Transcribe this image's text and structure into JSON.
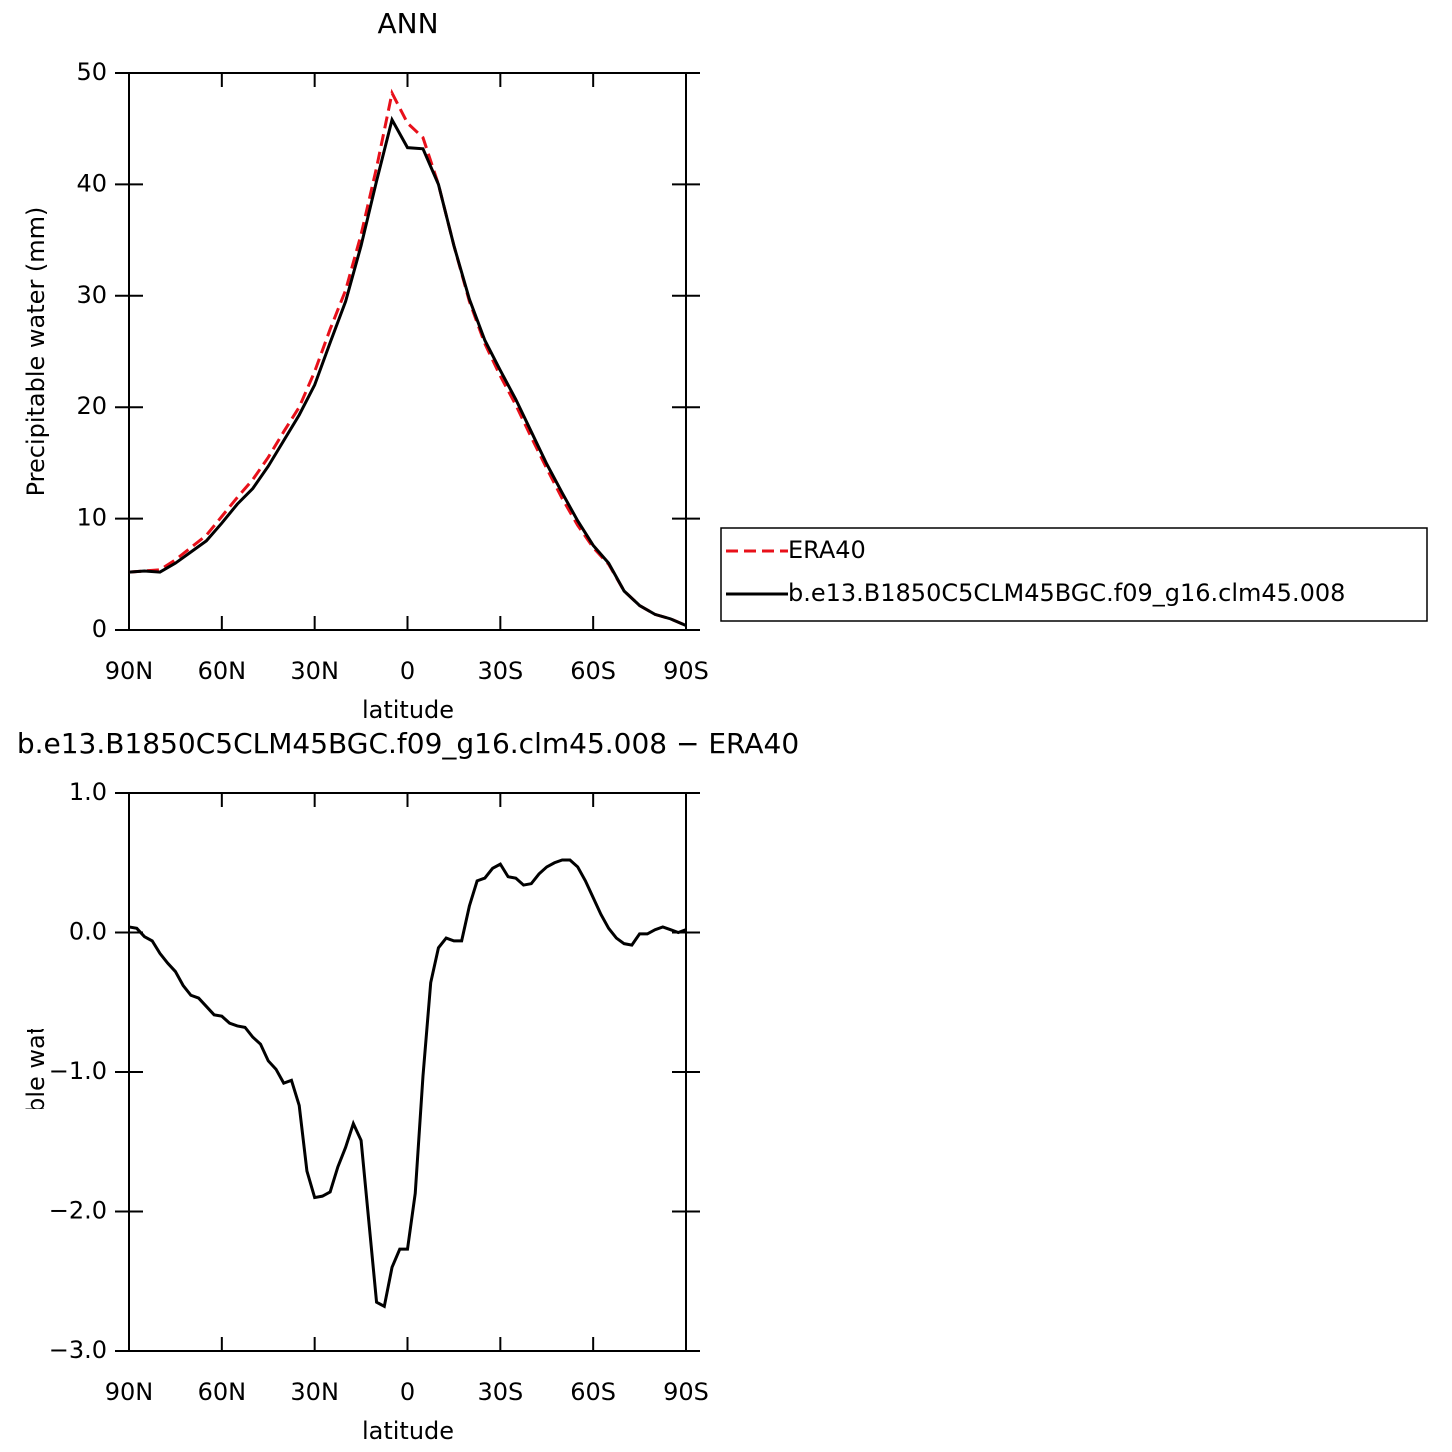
{
  "chart_data": [
    {
      "type": "line",
      "title": "ANN",
      "xlabel": "latitude",
      "ylabel": "Precipitable water (mm)",
      "x": [
        90,
        85,
        80,
        75,
        70,
        65,
        60,
        55,
        50,
        45,
        40,
        35,
        30,
        25,
        20,
        15,
        10,
        5,
        0,
        -5,
        -10,
        -15,
        -20,
        -25,
        -30,
        -35,
        -40,
        -45,
        -50,
        -55,
        -60,
        -65,
        -70,
        -75,
        -80,
        -85,
        -90
      ],
      "series": [
        {
          "name": "ERA40",
          "color": "#e8101a",
          "linestyle": "dashed",
          "values": [
            5.2,
            5.3,
            5.4,
            6.3,
            7.4,
            8.5,
            10.2,
            11.9,
            13.5,
            15.5,
            17.8,
            20.0,
            23.2,
            27.0,
            30.5,
            35.5,
            41.5,
            48.2,
            45.5,
            44.2,
            40.0,
            34.5,
            29.5,
            25.7,
            22.8,
            20.2,
            17.3,
            14.5,
            11.8,
            9.4,
            7.4,
            5.9,
            3.5,
            2.2,
            1.4,
            1.0,
            0.4
          ]
        },
        {
          "name": "b.e13.B1850C5CLM45BGC.f09_g16.clm45.008",
          "color": "#000000",
          "linestyle": "solid",
          "values": [
            5.2,
            5.3,
            5.2,
            6.0,
            7.0,
            8.0,
            9.6,
            11.3,
            12.7,
            14.7,
            17.0,
            19.3,
            22.0,
            25.8,
            29.5,
            34.5,
            40.3,
            45.8,
            43.3,
            43.2,
            40.0,
            34.5,
            29.7,
            26.0,
            23.3,
            20.7,
            17.8,
            14.9,
            12.3,
            9.8,
            7.6,
            6.0,
            3.5,
            2.2,
            1.4,
            1.0,
            0.4
          ]
        }
      ],
      "xlim": [
        90,
        -90
      ],
      "xticks": [
        {
          "value": 90,
          "label": "90N"
        },
        {
          "value": 60,
          "label": "60N"
        },
        {
          "value": 30,
          "label": "30N"
        },
        0,
        {
          "value": -30,
          "label": "30S"
        },
        {
          "value": -60,
          "label": "60S"
        },
        {
          "value": -90,
          "label": "90S"
        }
      ],
      "ylim": [
        0,
        50
      ],
      "yticks": [
        0,
        10,
        20,
        30,
        40,
        50
      ],
      "legend": "right"
    },
    {
      "type": "line",
      "title": "b.e13.B1850C5CLM45BGC.f09_g16.clm45.008 − ERA40",
      "xlabel": "latitude",
      "ylabel": "Precipitable water (mm)",
      "x": [
        90,
        87.5,
        85,
        82.5,
        80,
        77.5,
        75,
        72.5,
        70,
        67.5,
        65,
        62.5,
        60,
        57.5,
        55,
        52.5,
        50,
        47.5,
        45,
        42.5,
        40,
        37.5,
        35,
        32.5,
        30,
        27.5,
        25,
        22.5,
        20,
        17.5,
        15,
        12.5,
        10,
        7.5,
        5,
        2.5,
        0,
        -2.5,
        -5,
        -7.5,
        -10,
        -12.5,
        -15,
        -17.5,
        -20,
        -22.5,
        -25,
        -27.5,
        -30,
        -32.5,
        -35,
        -37.5,
        -40,
        -42.5,
        -45,
        -47.5,
        -50,
        -52.5,
        -55,
        -57.5,
        -60,
        -62.5,
        -65,
        -67.5,
        -70,
        -72.5,
        -75,
        -77.5,
        -80,
        -82.5,
        -85,
        -87.5,
        -90
      ],
      "series": [
        {
          "color": "#000000",
          "linestyle": "solid",
          "values": [
            0.04,
            0.03,
            -0.03,
            -0.06,
            -0.15,
            -0.22,
            -0.28,
            -0.38,
            -0.45,
            -0.47,
            -0.53,
            -0.59,
            -0.6,
            -0.65,
            -0.67,
            -0.68,
            -0.75,
            -0.8,
            -0.92,
            -0.98,
            -1.08,
            -1.06,
            -1.24,
            -1.71,
            -1.9,
            -1.89,
            -1.86,
            -1.68,
            -1.54,
            -1.37,
            -1.49,
            -2.07,
            -2.65,
            -2.68,
            -2.4,
            -2.27,
            -2.27,
            -1.87,
            -1.03,
            -0.36,
            -0.11,
            -0.04,
            -0.06,
            -0.06,
            0.19,
            0.37,
            0.39,
            0.46,
            0.49,
            0.4,
            0.39,
            0.34,
            0.35,
            0.42,
            0.47,
            0.5,
            0.52,
            0.52,
            0.47,
            0.37,
            0.25,
            0.13,
            0.03,
            -0.04,
            -0.08,
            -0.09,
            -0.01,
            -0.01,
            0.02,
            0.04,
            0.02,
            0,
            0.02
          ]
        }
      ],
      "xlim": [
        90,
        -90
      ],
      "xticks": [
        {
          "value": 90,
          "label": "90N"
        },
        {
          "value": 60,
          "label": "60N"
        },
        {
          "value": 30,
          "label": "30N"
        },
        0,
        {
          "value": -30,
          "label": "30S"
        },
        {
          "value": -60,
          "label": "60S"
        },
        {
          "value": -90,
          "label": "90S"
        }
      ],
      "ylim": [
        -3,
        1
      ],
      "yticks": [
        {
          "value": -3,
          "label": "−3.0"
        },
        {
          "value": -2,
          "label": "−2.0"
        },
        {
          "value": -1,
          "label": "−1.0"
        },
        {
          "value": 0,
          "label": "0.0"
        },
        {
          "value": 1,
          "label": "1.0"
        }
      ]
    }
  ]
}
